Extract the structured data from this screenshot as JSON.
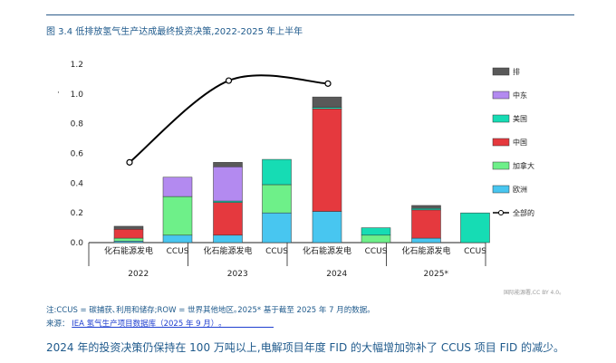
{
  "figure_title": "图 3.4 低排放氢气生产达成最终投资决策,2022-2025 年上半年",
  "chart_data": {
    "type": "bar",
    "stacked": true,
    "ylim": [
      0,
      1.2
    ],
    "yticks": [
      "0.0",
      "0.2",
      "0.4",
      "0.6",
      "0.8",
      "1.0",
      "1.2"
    ],
    "y_axis_marker": "·",
    "groups": [
      "2022",
      "2023",
      "2024",
      "2025*"
    ],
    "subcategories": [
      "化石能源发电",
      "CCUS"
    ],
    "bars": [
      {
        "group": "2022",
        "type": "化石能源发电",
        "ROW": 0.02,
        "中东": 0,
        "美国": 0,
        "中国": 0.06,
        "加拿大": 0.02,
        "欧洲": 0.01
      },
      {
        "group": "2022",
        "type": "CCUS",
        "ROW": 0,
        "中东": 0.13,
        "美国": 0,
        "中国": 0,
        "加拿大": 0.26,
        "欧洲": 0.05
      },
      {
        "group": "2023",
        "type": "化石能源发电",
        "ROW": 0.03,
        "中东": 0.23,
        "美国": 0.01,
        "中国": 0.22,
        "加拿大": 0,
        "欧洲": 0.05
      },
      {
        "group": "2023",
        "type": "CCUS",
        "ROW": 0,
        "中东": 0,
        "美国": 0.17,
        "中国": 0,
        "加拿大": 0.19,
        "欧洲": 0.2
      },
      {
        "group": "2024",
        "type": "化石能源发电",
        "ROW": 0.07,
        "中东": 0,
        "美国": 0.01,
        "中国": 0.69,
        "加拿大": 0,
        "欧洲": 0.21
      },
      {
        "group": "2024",
        "type": "CCUS",
        "ROW": 0,
        "中东": 0,
        "美国": 0.05,
        "中国": 0,
        "加拿大": 0.05,
        "欧洲": 0
      },
      {
        "group": "2025*",
        "type": "化石能源发电",
        "ROW": 0.02,
        "中东": 0,
        "美国": 0.01,
        "中国": 0.19,
        "加拿大": 0,
        "欧洲": 0.03
      },
      {
        "group": "2025*",
        "type": "CCUS",
        "ROW": 0,
        "中东": 0,
        "美国": 0.2,
        "中国": 0,
        "加拿大": 0,
        "欧洲": 0
      }
    ],
    "series": [
      {
        "name": "排",
        "key": "ROW",
        "color": "#595959"
      },
      {
        "name": "中东",
        "key": "中东",
        "color": "#b38af0"
      },
      {
        "name": "美国",
        "key": "美国",
        "color": "#16dcb4"
      },
      {
        "name": "中国",
        "key": "中国",
        "color": "#e5393e"
      },
      {
        "name": "加拿大",
        "key": "加拿大",
        "color": "#6ef089"
      },
      {
        "name": "欧洲",
        "key": "欧洲",
        "color": "#48c6f0"
      }
    ],
    "line": {
      "name": "全部的",
      "x": [
        "2022",
        "2023",
        "2024"
      ],
      "values": [
        0.54,
        1.09,
        1.07
      ],
      "color": "#000000"
    }
  },
  "note": "注:CCUS = 碳捕获､利用和储存;ROW = 世界其他地区｡2025* 基于截至 2025 年 7 月的数据｡",
  "source_prefix": "来源：",
  "source_link": "IEA 氢气生产项目数据库（2025 年 9 月）｡",
  "caption": "2024 年的投资决策仍保持在 100 万吨以上,电解项目年度 FID 的大幅增加弥补了 CCUS 项目 FID 的减少｡",
  "credit": "国际能源署,CC BY 4.0｡"
}
